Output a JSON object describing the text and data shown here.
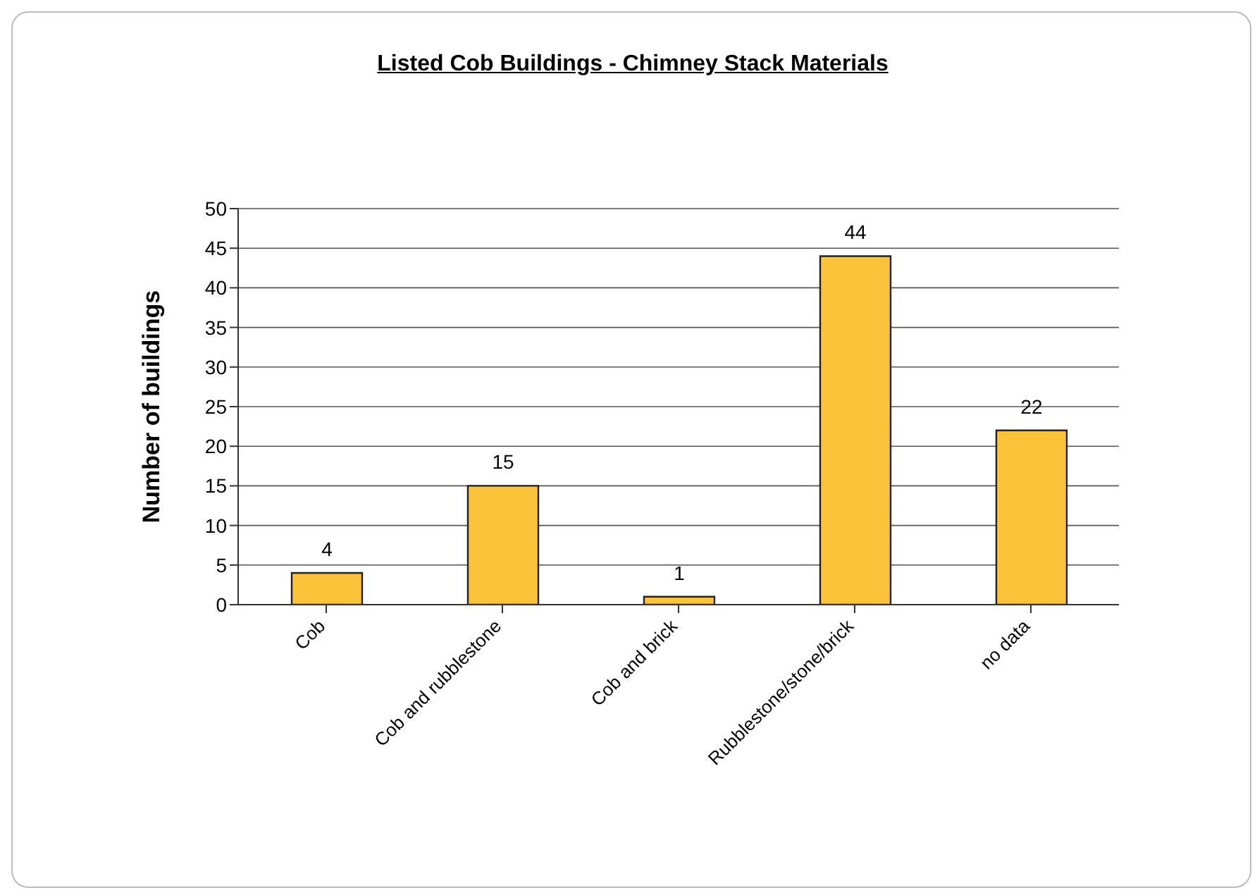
{
  "chart_data": {
    "type": "bar",
    "title": "Listed Cob Buildings - Chimney Stack Materials",
    "ylabel": "Number of buildings",
    "categories": [
      "Cob",
      "Cob and rubblestone",
      "Cob and brick",
      "Rubblestone/stone/brick",
      "no data"
    ],
    "values": [
      4,
      15,
      1,
      44,
      22
    ],
    "color": "#fbc33a",
    "ylim": [
      0,
      50
    ],
    "yticks": [
      0,
      5,
      10,
      15,
      20,
      25,
      30,
      35,
      40,
      45,
      50
    ],
    "grid": "y",
    "data_labels": true
  }
}
